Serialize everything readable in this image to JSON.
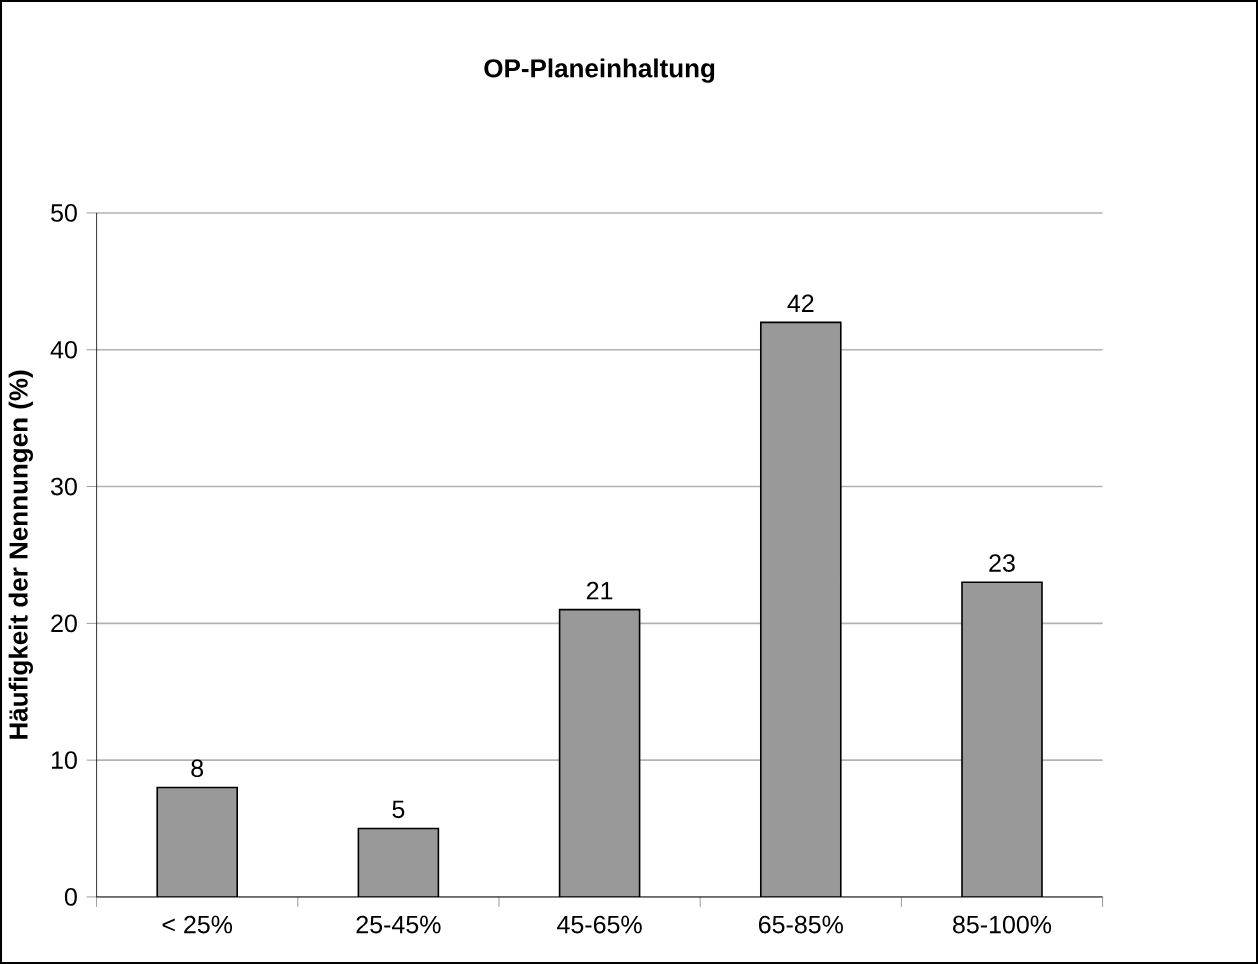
{
  "chart_data": {
    "type": "bar",
    "title": "OP-Planeinhaltung",
    "ylabel": "Häufigkeit der Nennungen (%)",
    "categories": [
      "< 25%",
      "25-45%",
      "45-65%",
      "65-85%",
      "85-100%"
    ],
    "values": [
      8,
      5,
      21,
      42,
      23
    ],
    "color": "#999999",
    "ylim": [
      0,
      50
    ],
    "yticks": [
      0,
      10,
      20,
      30,
      40,
      50
    ],
    "grid": "y",
    "data_labels": true
  }
}
